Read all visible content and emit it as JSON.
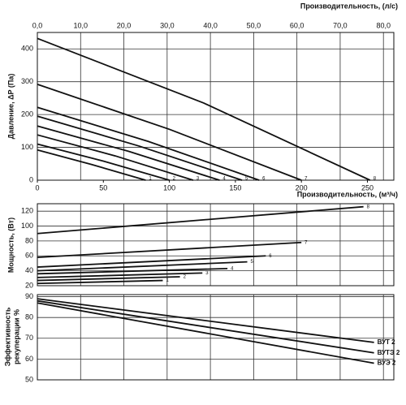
{
  "chart_data": [
    {
      "type": "line",
      "y_label": "Давление, ΔP (Па)",
      "x_label": "Производительность, (м³/ч)",
      "x2_label": "Производительность, (л/с)",
      "xlim": [
        0,
        270
      ],
      "xticks": [
        0,
        50,
        100,
        150,
        200,
        250
      ],
      "x2lim": [
        0,
        82.4
      ],
      "x2ticks": [
        {
          "value": 0,
          "label": "0,0"
        },
        {
          "value": 10,
          "label": "10,0"
        },
        {
          "value": 20,
          "label": "20,0"
        },
        {
          "value": 30,
          "label": "30,0"
        },
        {
          "value": 40,
          "label": "40,0"
        },
        {
          "value": 50,
          "label": "50,0"
        },
        {
          "value": 60,
          "label": "60,0"
        },
        {
          "value": 70,
          "label": "70,0"
        },
        {
          "value": 80,
          "label": "80,0"
        }
      ],
      "ylim": [
        0,
        450
      ],
      "yticks": [
        0,
        100,
        200,
        300,
        400
      ],
      "grid": true,
      "series": [
        {
          "name": "1",
          "color": "#111111",
          "x": [
            0,
            41,
            82
          ],
          "values": [
            92,
            48,
            0
          ]
        },
        {
          "name": "2",
          "color": "#111111",
          "x": [
            0,
            50,
            100
          ],
          "values": [
            110,
            58,
            0
          ]
        },
        {
          "name": "3",
          "color": "#111111",
          "x": [
            0,
            59,
            118
          ],
          "values": [
            138,
            74,
            0
          ]
        },
        {
          "name": "4",
          "color": "#111111",
          "x": [
            0,
            69,
            138
          ],
          "values": [
            165,
            88,
            0
          ]
        },
        {
          "name": "5",
          "color": "#111111",
          "x": [
            0,
            77,
            155
          ],
          "values": [
            195,
            104,
            0
          ]
        },
        {
          "name": "6",
          "color": "#111111",
          "x": [
            0,
            84,
            168
          ],
          "values": [
            222,
            118,
            0
          ]
        },
        {
          "name": "7",
          "color": "#111111",
          "x": [
            0,
            100,
            200
          ],
          "values": [
            292,
            155,
            0
          ]
        },
        {
          "name": "8",
          "color": "#111111",
          "x": [
            0,
            126,
            252
          ],
          "values": [
            432,
            235,
            0
          ]
        }
      ]
    },
    {
      "type": "line",
      "y_label": "Мощность, (Вт)",
      "xlim": [
        0,
        270
      ],
      "ylim": [
        20,
        130
      ],
      "yticks": [
        20,
        40,
        60,
        80,
        100,
        120
      ],
      "grid": true,
      "series": [
        {
          "name": "1",
          "color": "#111111",
          "x": [
            0,
            95
          ],
          "values": [
            23,
            27
          ]
        },
        {
          "name": "2",
          "color": "#111111",
          "x": [
            0,
            108
          ],
          "values": [
            27,
            32
          ]
        },
        {
          "name": "3",
          "color": "#111111",
          "x": [
            0,
            125
          ],
          "values": [
            31,
            37
          ]
        },
        {
          "name": "4",
          "color": "#111111",
          "x": [
            0,
            144
          ],
          "values": [
            36,
            43
          ]
        },
        {
          "name": "5",
          "color": "#111111",
          "x": [
            0,
            159
          ],
          "values": [
            40,
            52
          ]
        },
        {
          "name": "6",
          "color": "#111111",
          "x": [
            0,
            173
          ],
          "values": [
            45,
            60
          ]
        },
        {
          "name": "7",
          "color": "#111111",
          "x": [
            0,
            200
          ],
          "values": [
            58,
            78
          ]
        },
        {
          "name": "8",
          "color": "#111111",
          "x": [
            0,
            247
          ],
          "values": [
            90,
            126
          ]
        }
      ]
    },
    {
      "type": "line",
      "y_label": [
        "Эффективность",
        "рекуперации %"
      ],
      "xlim": [
        0,
        270
      ],
      "ylim": [
        50,
        91
      ],
      "yticks": [
        50,
        60,
        70,
        80,
        90
      ],
      "grid": true,
      "series": [
        {
          "name": "ВУТ 2",
          "color": "#111111",
          "x": [
            0,
            255
          ],
          "values": [
            89,
            68
          ]
        },
        {
          "name": "ВУТЭ 2",
          "color": "#111111",
          "x": [
            0,
            255
          ],
          "values": [
            88,
            63
          ]
        },
        {
          "name": "ВУЭ 2",
          "color": "#111111",
          "x": [
            0,
            255
          ],
          "values": [
            87,
            58
          ]
        }
      ]
    }
  ]
}
